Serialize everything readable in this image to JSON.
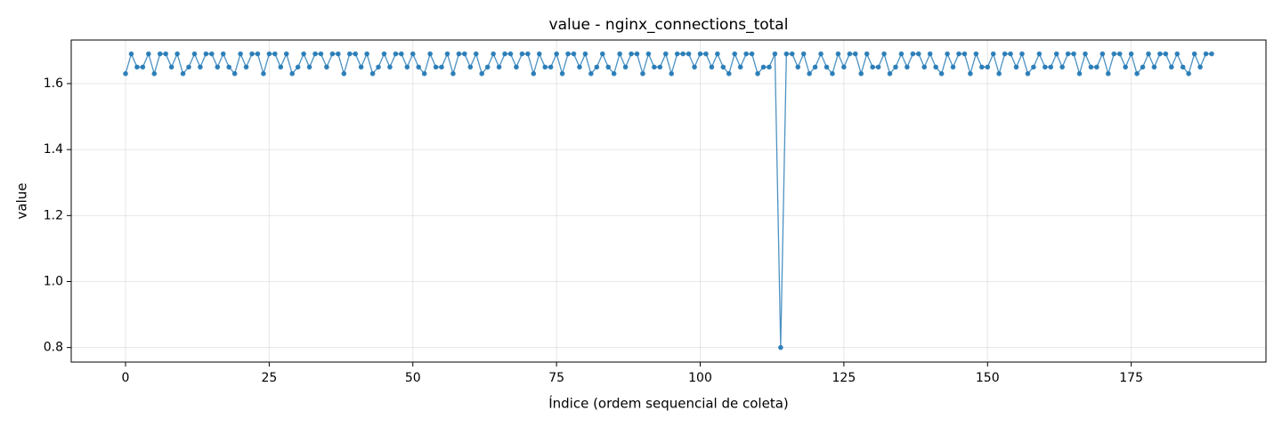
{
  "chart_data": {
    "type": "line",
    "title": "value - nginx_connections_total",
    "x_label": "Índice (ordem sequencial de coleta)",
    "y_label": "value",
    "x": [
      0,
      1,
      2,
      3,
      4,
      5,
      6,
      7,
      8,
      9,
      10,
      11,
      12,
      13,
      14,
      15,
      16,
      17,
      18,
      19,
      20,
      21,
      22,
      23,
      24,
      25,
      26,
      27,
      28,
      29,
      30,
      31,
      32,
      33,
      34,
      35,
      36,
      37,
      38,
      39,
      40,
      41,
      42,
      43,
      44,
      45,
      46,
      47,
      48,
      49,
      50,
      51,
      52,
      53,
      54,
      55,
      56,
      57,
      58,
      59,
      60,
      61,
      62,
      63,
      64,
      65,
      66,
      67,
      68,
      69,
      70,
      71,
      72,
      73,
      74,
      75,
      76,
      77,
      78,
      79,
      80,
      81,
      82,
      83,
      84,
      85,
      86,
      87,
      88,
      89,
      90,
      91,
      92,
      93,
      94,
      95,
      96,
      97,
      98,
      99,
      100,
      101,
      102,
      103,
      104,
      105,
      106,
      107,
      108,
      109,
      110,
      111,
      112,
      113,
      114,
      115,
      116,
      117,
      118,
      119,
      120,
      121,
      122,
      123,
      124,
      125,
      126,
      127,
      128,
      129,
      130,
      131,
      132,
      133,
      134,
      135,
      136,
      137,
      138,
      139,
      140,
      141,
      142,
      143,
      144,
      145,
      146,
      147,
      148,
      149,
      150,
      151,
      152,
      153,
      154,
      155,
      156,
      157,
      158,
      159,
      160,
      161,
      162,
      163,
      164,
      165,
      166,
      167,
      168,
      169,
      170,
      171,
      172,
      173,
      174,
      175,
      176,
      177,
      178,
      179,
      180,
      181,
      182,
      183,
      184,
      185,
      186,
      187,
      188,
      189
    ],
    "series": [
      {
        "name": "value",
        "color": "#1f77b4",
        "values": [
          1.63,
          1.69,
          1.65,
          1.65,
          1.69,
          1.63,
          1.69,
          1.69,
          1.65,
          1.69,
          1.63,
          1.65,
          1.69,
          1.65,
          1.69,
          1.69,
          1.65,
          1.69,
          1.65,
          1.63,
          1.69,
          1.65,
          1.69,
          1.69,
          1.63,
          1.69,
          1.69,
          1.65,
          1.69,
          1.63,
          1.65,
          1.69,
          1.65,
          1.69,
          1.69,
          1.65,
          1.69,
          1.69,
          1.63,
          1.69,
          1.69,
          1.65,
          1.69,
          1.63,
          1.65,
          1.69,
          1.65,
          1.69,
          1.69,
          1.65,
          1.69,
          1.65,
          1.63,
          1.69,
          1.65,
          1.65,
          1.69,
          1.63,
          1.69,
          1.69,
          1.65,
          1.69,
          1.63,
          1.65,
          1.69,
          1.65,
          1.69,
          1.69,
          1.65,
          1.69,
          1.69,
          1.63,
          1.69,
          1.65,
          1.65,
          1.69,
          1.63,
          1.69,
          1.69,
          1.65,
          1.69,
          1.63,
          1.65,
          1.69,
          1.65,
          1.63,
          1.69,
          1.65,
          1.69,
          1.69,
          1.63,
          1.69,
          1.65,
          1.65,
          1.69,
          1.63,
          1.69,
          1.69,
          1.69,
          1.65,
          1.69,
          1.69,
          1.65,
          1.69,
          1.65,
          1.63,
          1.69,
          1.65,
          1.69,
          1.69,
          1.63,
          1.65,
          1.65,
          1.69,
          0.8,
          1.69,
          1.69,
          1.65,
          1.69,
          1.63,
          1.65,
          1.69,
          1.65,
          1.63,
          1.69,
          1.65,
          1.69,
          1.69,
          1.63,
          1.69,
          1.65,
          1.65,
          1.69,
          1.63,
          1.65,
          1.69,
          1.65,
          1.69,
          1.69,
          1.65,
          1.69,
          1.65,
          1.63,
          1.69,
          1.65,
          1.69,
          1.69,
          1.63,
          1.69,
          1.65,
          1.65,
          1.69,
          1.63,
          1.69,
          1.69,
          1.65,
          1.69,
          1.63,
          1.65,
          1.69,
          1.65,
          1.65,
          1.69,
          1.65,
          1.69,
          1.69,
          1.63,
          1.69,
          1.65,
          1.65,
          1.69,
          1.63,
          1.69,
          1.69,
          1.65,
          1.69,
          1.63,
          1.65,
          1.69,
          1.65,
          1.69,
          1.69,
          1.65,
          1.69,
          1.65,
          1.63,
          1.69,
          1.65,
          1.69,
          1.69
        ]
      }
    ],
    "xlim": [
      -9.45,
      198.45
    ],
    "ylim": [
      0.756,
      1.732
    ],
    "xticks": [
      0,
      25,
      50,
      75,
      100,
      125,
      150,
      175
    ],
    "yticks": [
      {
        "value": 0.8,
        "label": "0.8"
      },
      {
        "value": 1.0,
        "label": "1.0"
      },
      {
        "value": 1.2,
        "label": "1.2"
      },
      {
        "value": 1.4,
        "label": "1.4"
      },
      {
        "value": 1.6,
        "label": "1.6"
      }
    ],
    "grid": true
  }
}
